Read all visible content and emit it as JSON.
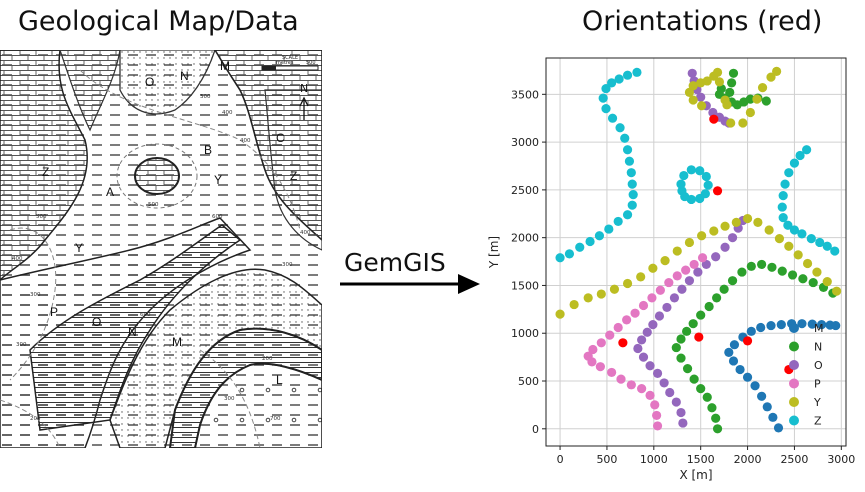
{
  "titles": {
    "left": "Geological Map/Data",
    "right": "Orientations (red)"
  },
  "arrow": {
    "label": "GemGIS"
  },
  "map": {
    "scale_label_1": "SCALE",
    "scale_label_2": "metres",
    "scale_value": "500",
    "north_label": "N",
    "unit_labels": [
      "O",
      "N",
      "M",
      "B",
      "C",
      "Z",
      "A",
      "Y",
      "Z",
      "Y",
      "P",
      "O",
      "N",
      "M",
      "L"
    ],
    "contour_labels": [
      "300",
      "400",
      "400",
      "500",
      "500",
      "600",
      "400",
      "300",
      "400",
      "300",
      "200",
      "300",
      "300",
      "200",
      "600",
      "700"
    ]
  },
  "chart_data": {
    "type": "scatter",
    "title": "Orientations (red)",
    "xlabel": "X [m]",
    "ylabel": "Y [m]",
    "xlim": [
      -150,
      3050
    ],
    "ylim": [
      -180,
      3880
    ],
    "xticks": [
      0,
      500,
      1000,
      1500,
      2000,
      2500,
      3000
    ],
    "yticks": [
      0,
      500,
      1000,
      1500,
      2000,
      2500,
      3000,
      3500
    ],
    "grid": true,
    "legend_position": "right",
    "series": [
      {
        "name": "M",
        "color": "#1f77b4",
        "points": [
          [
            2330,
            10
          ],
          [
            2270,
            120
          ],
          [
            2210,
            230
          ],
          [
            2150,
            340
          ],
          [
            2080,
            450
          ],
          [
            2000,
            540
          ],
          [
            1920,
            620
          ],
          [
            1850,
            710
          ],
          [
            1800,
            800
          ],
          [
            1860,
            880
          ],
          [
            1950,
            960
          ],
          [
            2040,
            1020
          ],
          [
            2140,
            1060
          ],
          [
            2250,
            1080
          ],
          [
            2360,
            1090
          ],
          [
            2470,
            1100
          ],
          [
            2580,
            1100
          ],
          [
            2690,
            1095
          ],
          [
            2790,
            1090
          ],
          [
            2880,
            1085
          ],
          [
            2940,
            1080
          ]
        ]
      },
      {
        "name": "N",
        "color": "#2ca02c",
        "points": [
          [
            1680,
            0
          ],
          [
            1660,
            110
          ],
          [
            1620,
            220
          ],
          [
            1570,
            330
          ],
          [
            1500,
            420
          ],
          [
            1430,
            520
          ],
          [
            1360,
            630
          ],
          [
            1290,
            740
          ],
          [
            1240,
            850
          ],
          [
            1290,
            940
          ],
          [
            1350,
            1020
          ],
          [
            1420,
            1100
          ],
          [
            1500,
            1190
          ],
          [
            1590,
            1280
          ],
          [
            1670,
            1370
          ],
          [
            1750,
            1460
          ],
          [
            1840,
            1550
          ],
          [
            1940,
            1640
          ],
          [
            2040,
            1700
          ],
          [
            2150,
            1720
          ],
          [
            2260,
            1690
          ],
          [
            2370,
            1650
          ],
          [
            2480,
            1610
          ],
          [
            2590,
            1570
          ],
          [
            2700,
            1530
          ],
          [
            2810,
            1480
          ],
          [
            2910,
            1420
          ],
          [
            1850,
            3720
          ],
          [
            1830,
            3620
          ],
          [
            1810,
            3520
          ],
          [
            1830,
            3420
          ],
          [
            1890,
            3390
          ],
          [
            1960,
            3420
          ],
          [
            2030,
            3450
          ],
          [
            2110,
            3460
          ],
          [
            2200,
            3430
          ],
          [
            1720,
            3560
          ],
          [
            1700,
            3500
          ],
          [
            1760,
            3460
          ]
        ]
      },
      {
        "name": "O",
        "color": "#9467bd",
        "points": [
          [
            1310,
            60
          ],
          [
            1290,
            170
          ],
          [
            1240,
            280
          ],
          [
            1170,
            380
          ],
          [
            1110,
            480
          ],
          [
            1040,
            580
          ],
          [
            960,
            660
          ],
          [
            890,
            750
          ],
          [
            830,
            840
          ],
          [
            870,
            930
          ],
          [
            930,
            1010
          ],
          [
            990,
            1090
          ],
          [
            1060,
            1180
          ],
          [
            1140,
            1270
          ],
          [
            1220,
            1370
          ],
          [
            1300,
            1460
          ],
          [
            1380,
            1550
          ],
          [
            1470,
            1640
          ],
          [
            1560,
            1720
          ],
          [
            1660,
            1800
          ],
          [
            1760,
            1900
          ],
          [
            1840,
            2000
          ],
          [
            1900,
            2100
          ],
          [
            1950,
            2180
          ],
          [
            1800,
            3200
          ],
          [
            1760,
            3220
          ],
          [
            1700,
            3260
          ],
          [
            1630,
            3310
          ],
          [
            1560,
            3380
          ],
          [
            1500,
            3470
          ],
          [
            1460,
            3550
          ],
          [
            1430,
            3640
          ],
          [
            1410,
            3720
          ]
        ]
      },
      {
        "name": "P",
        "color": "#e377c2",
        "points": [
          [
            1040,
            30
          ],
          [
            1030,
            140
          ],
          [
            1010,
            250
          ],
          [
            960,
            350
          ],
          [
            870,
            420
          ],
          [
            760,
            460
          ],
          [
            650,
            520
          ],
          [
            550,
            590
          ],
          [
            430,
            650
          ],
          [
            340,
            700
          ],
          [
            300,
            760
          ],
          [
            350,
            830
          ],
          [
            440,
            900
          ],
          [
            530,
            980
          ],
          [
            620,
            1060
          ],
          [
            710,
            1140
          ],
          [
            800,
            1210
          ],
          [
            890,
            1290
          ],
          [
            980,
            1370
          ],
          [
            1070,
            1450
          ],
          [
            1160,
            1530
          ],
          [
            1250,
            1600
          ],
          [
            1340,
            1660
          ],
          [
            1430,
            1720
          ],
          [
            1520,
            1790
          ]
        ]
      },
      {
        "name": "Y",
        "color": "#bcbd22",
        "points": [
          [
            0,
            1200
          ],
          [
            150,
            1300
          ],
          [
            300,
            1370
          ],
          [
            440,
            1410
          ],
          [
            580,
            1460
          ],
          [
            720,
            1520
          ],
          [
            860,
            1590
          ],
          [
            990,
            1680
          ],
          [
            1120,
            1760
          ],
          [
            1250,
            1860
          ],
          [
            1380,
            1950
          ],
          [
            1510,
            2020
          ],
          [
            1640,
            2070
          ],
          [
            1760,
            2120
          ],
          [
            1880,
            2160
          ],
          [
            2000,
            2200
          ],
          [
            2110,
            2160
          ],
          [
            2230,
            2080
          ],
          [
            2340,
            1990
          ],
          [
            2440,
            1910
          ],
          [
            2540,
            1820
          ],
          [
            2640,
            1730
          ],
          [
            2740,
            1640
          ],
          [
            2850,
            1540
          ],
          [
            2950,
            1440
          ],
          [
            1510,
            3380
          ],
          [
            1420,
            3440
          ],
          [
            1380,
            3520
          ],
          [
            1420,
            3590
          ],
          [
            1500,
            3620
          ],
          [
            1570,
            3640
          ],
          [
            1640,
            3690
          ],
          [
            1680,
            3730
          ],
          [
            1700,
            3630
          ],
          [
            1760,
            3440
          ],
          [
            1780,
            3390
          ],
          [
            1950,
            3200
          ],
          [
            2030,
            3310
          ],
          [
            2100,
            3450
          ],
          [
            2160,
            3570
          ],
          [
            2250,
            3680
          ],
          [
            2310,
            3740
          ],
          [
            1820,
            3200
          ]
        ]
      },
      {
        "name": "Z",
        "color": "#17becf",
        "points": [
          [
            0,
            1790
          ],
          [
            100,
            1830
          ],
          [
            210,
            1900
          ],
          [
            320,
            1960
          ],
          [
            420,
            2020
          ],
          [
            520,
            2090
          ],
          [
            620,
            2170
          ],
          [
            720,
            2240
          ],
          [
            770,
            2340
          ],
          [
            780,
            2450
          ],
          [
            770,
            2560
          ],
          [
            760,
            2680
          ],
          [
            740,
            2800
          ],
          [
            720,
            2920
          ],
          [
            690,
            3040
          ],
          [
            640,
            3150
          ],
          [
            560,
            3250
          ],
          [
            490,
            3350
          ],
          [
            460,
            3460
          ],
          [
            490,
            3560
          ],
          [
            550,
            3620
          ],
          [
            630,
            3660
          ],
          [
            720,
            3700
          ],
          [
            820,
            3730
          ],
          [
            2630,
            2920
          ],
          [
            2560,
            2860
          ],
          [
            2500,
            2780
          ],
          [
            2440,
            2680
          ],
          [
            2400,
            2560
          ],
          [
            2380,
            2440
          ],
          [
            2370,
            2320
          ],
          [
            2380,
            2210
          ],
          [
            2430,
            2130
          ],
          [
            2500,
            2080
          ],
          [
            2580,
            2040
          ],
          [
            2680,
            1990
          ],
          [
            2770,
            1950
          ],
          [
            2850,
            1910
          ],
          [
            2930,
            1860
          ],
          [
            1300,
            2490
          ],
          [
            1290,
            2560
          ],
          [
            1320,
            2650
          ],
          [
            1400,
            2710
          ],
          [
            1490,
            2700
          ],
          [
            1560,
            2640
          ],
          [
            1580,
            2550
          ],
          [
            1550,
            2460
          ],
          [
            1490,
            2410
          ],
          [
            1400,
            2400
          ],
          [
            1330,
            2430
          ]
        ]
      },
      {
        "name": "orientations",
        "color": "#ff0000",
        "points": [
          [
            1680,
            2490
          ],
          [
            1640,
            3240
          ],
          [
            670,
            900
          ],
          [
            1480,
            960
          ],
          [
            2000,
            920
          ],
          [
            2440,
            620
          ]
        ]
      }
    ]
  }
}
